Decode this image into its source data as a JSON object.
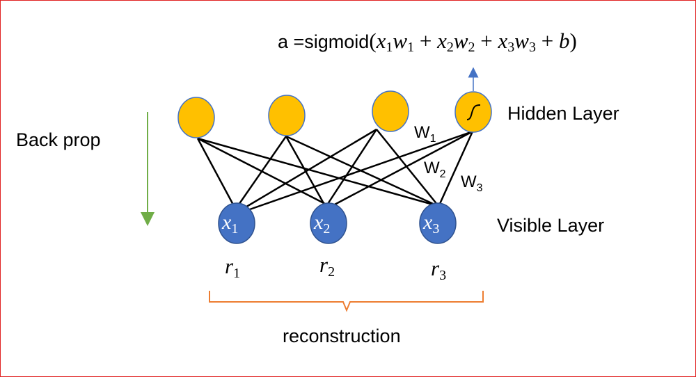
{
  "formula": {
    "prefix": "a =sigmoid",
    "open": "(",
    "term1_var": "x",
    "term1_sub": "1",
    "term1_w": "w",
    "term1_wsub": "1",
    "plus1": " + ",
    "term2_var": "x",
    "term2_sub": "2",
    "term2_w": "w",
    "term2_wsub": "2",
    "plus2": " + ",
    "term3_var": "x",
    "term3_sub": "3",
    "term3_w": "w",
    "term3_wsub": "3",
    "plus3": " + ",
    "bias": "b",
    "close": ")"
  },
  "labels": {
    "hidden_layer": "Hidden Layer",
    "visible_layer": "Visible Layer",
    "back_prop": "Back prop",
    "reconstruction": "reconstruction"
  },
  "weights": [
    {
      "base": "W",
      "sub": "1"
    },
    {
      "base": "W",
      "sub": "2"
    },
    {
      "base": "W",
      "sub": "3"
    }
  ],
  "visible_nodes": [
    {
      "var": "x",
      "sub": "1"
    },
    {
      "var": "x",
      "sub": "2"
    },
    {
      "var": "x",
      "sub": "3"
    }
  ],
  "reconstructed": [
    {
      "var": "r",
      "sub": "1"
    },
    {
      "var": "r",
      "sub": "2"
    },
    {
      "var": "r",
      "sub": "3"
    }
  ],
  "hidden_node_icons": [
    "blank",
    "blank",
    "blank",
    "sigmoid-curve-icon"
  ],
  "colors": {
    "border": "#e02020",
    "hidden_fill": "#ffc000",
    "hidden_stroke": "#4472c4",
    "visible_fill": "#4472c4",
    "visible_stroke": "#2f528f",
    "edge": "#000000",
    "up_arrow": "#4472c4",
    "back_prop_arrow": "#70ad47",
    "brace": "#ed7d31"
  }
}
